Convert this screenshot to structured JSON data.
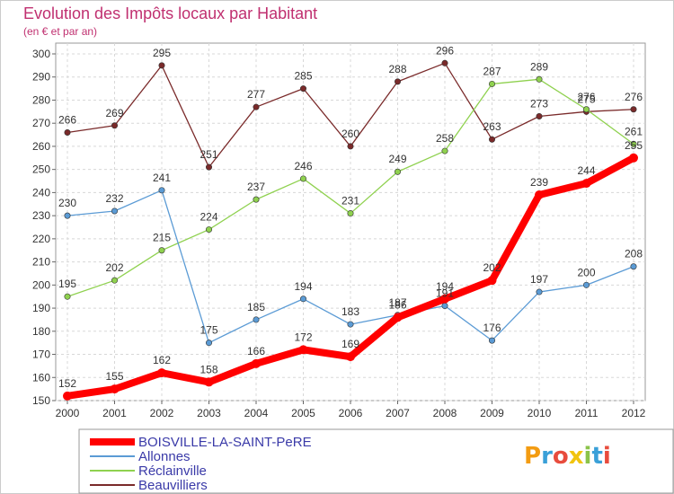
{
  "chart_data": {
    "type": "line",
    "title": "Evolution des Impôts locaux par Habitant",
    "subtitle": "(en € et par an)",
    "categories": [
      "2000",
      "2001",
      "2002",
      "2003",
      "2004",
      "2005",
      "2006",
      "2007",
      "2008",
      "2009",
      "2010",
      "2011",
      "2012"
    ],
    "y_ticks": [
      "150",
      "160",
      "170",
      "180",
      "190",
      "200",
      "210",
      "220",
      "230",
      "240",
      "250",
      "260",
      "270",
      "280",
      "290",
      "300"
    ],
    "ylim": [
      150,
      300
    ],
    "grid": true,
    "legend_position": "bottom-left",
    "series": [
      {
        "name": "BOISVILLE-LA-SAINT-PeRE",
        "color": "#ff0000",
        "values": [
          152,
          155,
          162,
          158,
          166,
          172,
          169,
          186,
          194,
          202,
          239,
          244,
          255
        ],
        "labels": [
          "152",
          "155",
          "162",
          "158",
          "166",
          "172",
          "169",
          "186",
          "194",
          "202",
          "239",
          "244",
          "255"
        ]
      },
      {
        "name": "Allonnes",
        "color": "#5b9bd5",
        "values": [
          230,
          232,
          241,
          175,
          185,
          194,
          183,
          187,
          191,
          176,
          197,
          200,
          208
        ],
        "labels": [
          "230",
          "232",
          "241",
          "175",
          "185",
          "194",
          "183",
          "187",
          "191",
          "176",
          "197",
          "200",
          "208"
        ]
      },
      {
        "name": "Réclainville",
        "color": "#8fd14f",
        "values": [
          195,
          202,
          215,
          224,
          237,
          246,
          231,
          249,
          258,
          287,
          289,
          276,
          261
        ],
        "labels": [
          "195",
          "202",
          "215",
          "224",
          "237",
          "246",
          "231",
          "249",
          "258",
          "287",
          "289",
          "276",
          "261"
        ]
      },
      {
        "name": "Beauvilliers",
        "color": "#7a2a2a",
        "values": [
          266,
          269,
          295,
          251,
          277,
          285,
          260,
          288,
          296,
          263,
          273,
          275,
          276
        ],
        "labels": [
          "266",
          "269",
          "295",
          "251",
          "277",
          "285",
          "260",
          "288",
          "296",
          "263",
          "273",
          "275",
          "276"
        ]
      }
    ]
  },
  "logo_text": "Proxiti"
}
